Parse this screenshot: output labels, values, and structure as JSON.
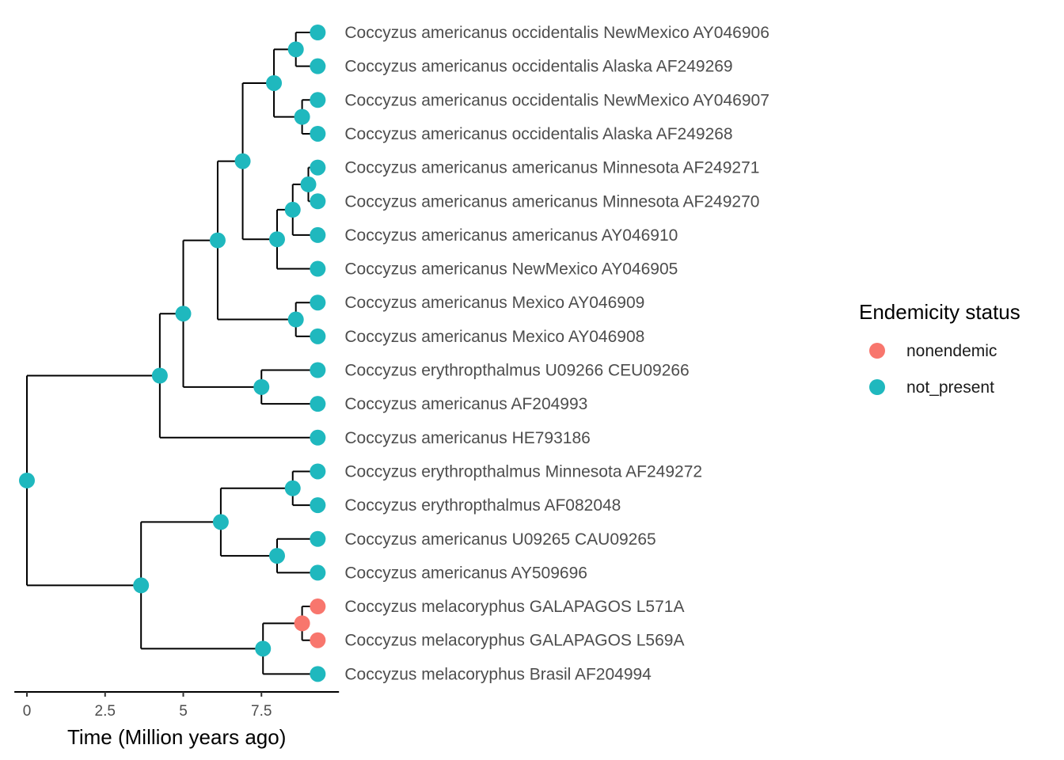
{
  "chart_data": {
    "type": "phylogenetic-tree",
    "xlabel": "Time (Million years ago)",
    "x_ticks": [
      0,
      2.5,
      5,
      7.5
    ],
    "x_tick_labels": [
      "0",
      "2.5",
      "5",
      "7.5"
    ],
    "xlim": [
      -0.3,
      9.6
    ],
    "status_colors": {
      "nonendemic": "#F8766D",
      "not_present": "#1FB8BE"
    },
    "legend": {
      "title": "Endemicity status",
      "placement": "right",
      "items": [
        {
          "label": "nonendemic",
          "color": "#F8766D"
        },
        {
          "label": "not_present",
          "color": "#1FB8BE"
        }
      ]
    },
    "tips": [
      {
        "label": "Coccyzus americanus occidentalis NewMexico AY046906",
        "status": "not_present"
      },
      {
        "label": "Coccyzus americanus occidentalis Alaska AF249269",
        "status": "not_present"
      },
      {
        "label": "Coccyzus americanus occidentalis NewMexico AY046907",
        "status": "not_present"
      },
      {
        "label": "Coccyzus americanus occidentalis Alaska AF249268",
        "status": "not_present"
      },
      {
        "label": "Coccyzus americanus americanus Minnesota AF249271",
        "status": "not_present"
      },
      {
        "label": "Coccyzus americanus americanus Minnesota AF249270",
        "status": "not_present"
      },
      {
        "label": "Coccyzus americanus americanus AY046910",
        "status": "not_present"
      },
      {
        "label": "Coccyzus americanus NewMexico AY046905",
        "status": "not_present"
      },
      {
        "label": "Coccyzus americanus Mexico AY046909",
        "status": "not_present"
      },
      {
        "label": "Coccyzus americanus Mexico AY046908",
        "status": "not_present"
      },
      {
        "label": "Coccyzus erythropthalmus U09266  CEU09266",
        "status": "not_present"
      },
      {
        "label": "Coccyzus americanus AF204993",
        "status": "not_present"
      },
      {
        "label": "Coccyzus americanus HE793186",
        "status": "not_present"
      },
      {
        "label": "Coccyzus erythropthalmus  Minnesota AF249272",
        "status": "not_present"
      },
      {
        "label": "Coccyzus erythropthalmus AF082048",
        "status": "not_present"
      },
      {
        "label": "Coccyzus americanus U09265  CAU09265",
        "status": "not_present"
      },
      {
        "label": "Coccyzus americanus AY509696",
        "status": "not_present"
      },
      {
        "label": "Coccyzus melacoryphus GALAPAGOS L571A",
        "status": "nonendemic"
      },
      {
        "label": "Coccyzus melacoryphus GALAPAGOS L569A",
        "status": "nonendemic"
      },
      {
        "label": "Coccyzus melacoryphus Brasil AF204994",
        "status": "not_present"
      }
    ],
    "tip_time": 9.3,
    "nodes": [
      {
        "id": "n1",
        "time": 8.6,
        "children": [
          "t0",
          "t1"
        ],
        "status": "not_present"
      },
      {
        "id": "n2",
        "time": 8.8,
        "children": [
          "t2",
          "t3"
        ],
        "status": "not_present"
      },
      {
        "id": "n3",
        "time": 7.9,
        "children": [
          "n1",
          "n2"
        ],
        "status": "not_present"
      },
      {
        "id": "n4",
        "time": 9.0,
        "children": [
          "t4",
          "t5"
        ],
        "status": "not_present"
      },
      {
        "id": "n5",
        "time": 8.5,
        "children": [
          "n4",
          "t6"
        ],
        "status": "not_present"
      },
      {
        "id": "n6",
        "time": 8.0,
        "children": [
          "n5",
          "t7"
        ],
        "status": "not_present"
      },
      {
        "id": "n7",
        "time": 6.9,
        "children": [
          "n3",
          "n6"
        ],
        "status": "not_present"
      },
      {
        "id": "n8",
        "time": 8.6,
        "children": [
          "t8",
          "t9"
        ],
        "status": "not_present"
      },
      {
        "id": "n9",
        "time": 6.1,
        "children": [
          "n7",
          "n8"
        ],
        "status": "not_present"
      },
      {
        "id": "n10",
        "time": 7.5,
        "children": [
          "t10",
          "t11"
        ],
        "status": "not_present"
      },
      {
        "id": "n11",
        "time": 5.0,
        "children": [
          "n9",
          "n10"
        ],
        "status": "not_present"
      },
      {
        "id": "n12",
        "time": 4.25,
        "children": [
          "n11",
          "t12"
        ],
        "status": "not_present"
      },
      {
        "id": "n13",
        "time": 8.5,
        "children": [
          "t13",
          "t14"
        ],
        "status": "not_present"
      },
      {
        "id": "n14",
        "time": 8.0,
        "children": [
          "t15",
          "t16"
        ],
        "status": "not_present"
      },
      {
        "id": "n15",
        "time": 6.2,
        "children": [
          "n13",
          "n14"
        ],
        "status": "not_present"
      },
      {
        "id": "n16",
        "time": 8.8,
        "children": [
          "t17",
          "t18"
        ],
        "status": "nonendemic"
      },
      {
        "id": "n17",
        "time": 7.55,
        "children": [
          "n16",
          "t19"
        ],
        "status": "not_present"
      },
      {
        "id": "n18",
        "time": 3.65,
        "children": [
          "n15",
          "n17"
        ],
        "status": "not_present"
      },
      {
        "id": "root",
        "time": 0,
        "children": [
          "n12",
          "n18"
        ],
        "status": "not_present"
      }
    ]
  }
}
